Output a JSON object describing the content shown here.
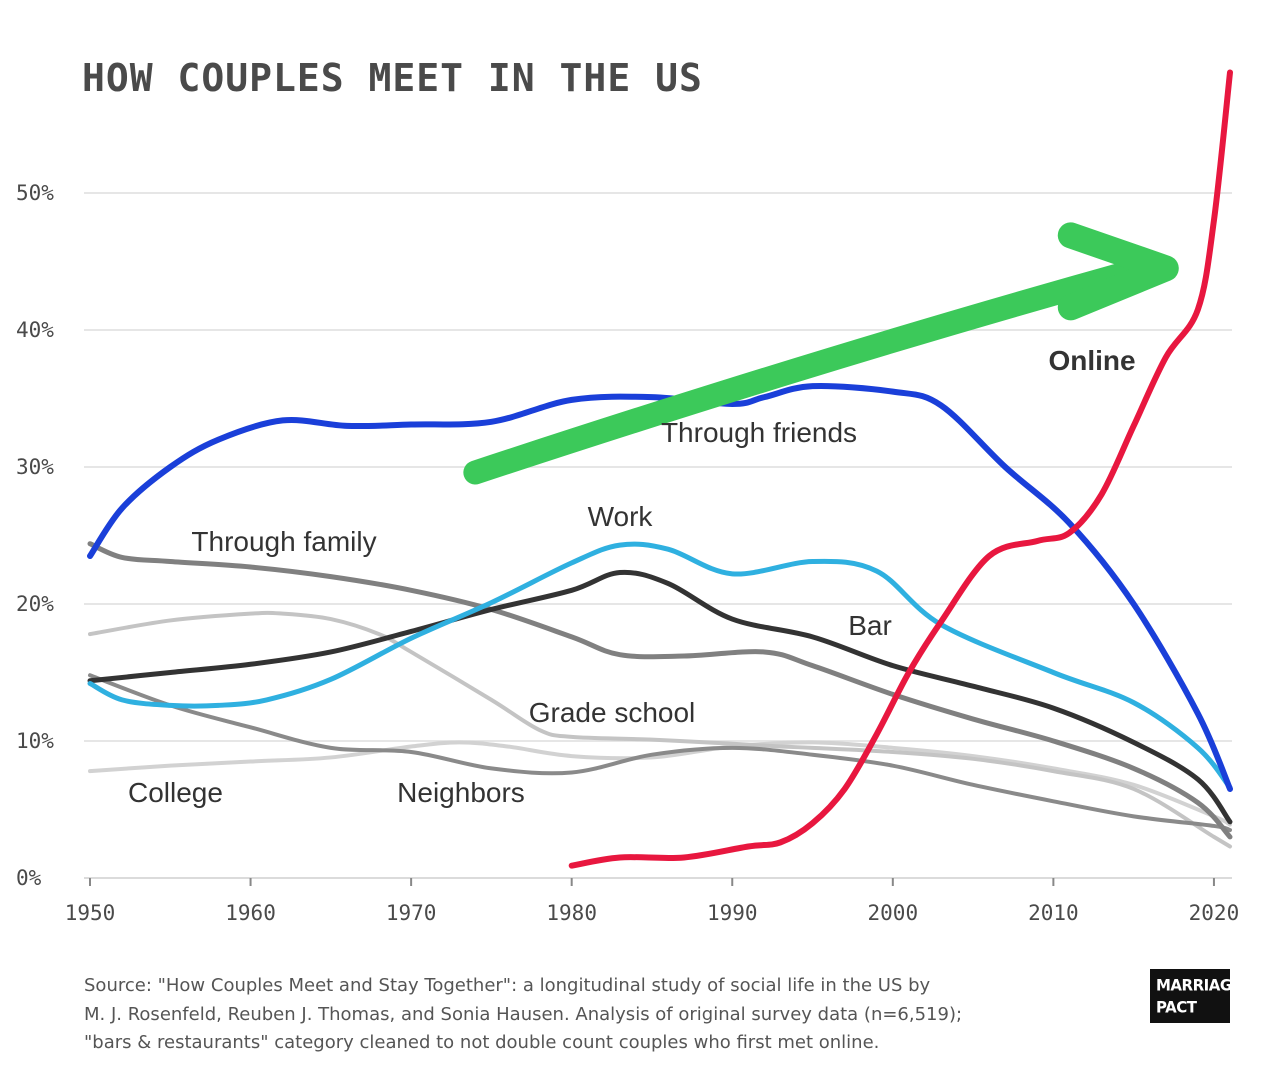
{
  "title": "HOW COUPLES MEET IN THE US",
  "source_lines": [
    "Source: \"How Couples Meet and Stay Together\": a longitudinal study of social life in the US by",
    "M. J. Rosenfeld, Reuben J. Thomas, and Sonia Hausen. Analysis of original survey data (n=6,519);",
    "\"bars & restaurants\" category cleaned to not double count couples who first met online."
  ],
  "logo": {
    "line1": "MARRIAGE",
    "line2": "PACT"
  },
  "colors": {
    "online": "#e8173f",
    "friends": "#1a3fd9",
    "work": "#2fb0e0",
    "bar": "#333333",
    "family": "#808080",
    "neighbors": "#8a8a8a",
    "gradeschool": "#c4c4c4",
    "college": "#d2d2d2",
    "arrow": "#3cc95a",
    "grid": "#dddddd"
  },
  "chart_data": {
    "type": "line",
    "title": "HOW COUPLES MEET IN THE US",
    "xlabel": "",
    "ylabel": "",
    "xlim": [
      1950,
      2021
    ],
    "ylim": [
      0,
      55
    ],
    "grid": true,
    "x_ticks": [
      1950,
      1960,
      1970,
      1980,
      1990,
      2000,
      2010,
      2020
    ],
    "x_tick_labels": [
      "1950",
      "1960",
      "1970",
      "1980",
      "1990",
      "2000",
      "2010",
      "2020"
    ],
    "y_ticks": [
      0,
      10,
      20,
      30,
      40,
      50
    ],
    "y_tick_labels": [
      "0%",
      "10%",
      "20%",
      "30%",
      "40%",
      "50%"
    ],
    "series": [
      {
        "name": "College",
        "key": "college",
        "width": 4,
        "label": "College",
        "x": [
          1950,
          1955,
          1960,
          1965,
          1970,
          1973,
          1976,
          1980,
          1985,
          1990,
          1995,
          2000,
          2005,
          2010,
          2015,
          2020,
          2021
        ],
        "values": [
          7.8,
          8.2,
          8.5,
          8.8,
          9.6,
          9.9,
          9.6,
          8.9,
          8.8,
          9.6,
          9.9,
          9.5,
          8.9,
          8.0,
          6.8,
          4.5,
          3.9
        ]
      },
      {
        "name": "Grade school",
        "key": "gradeschool",
        "width": 4,
        "label": "Grade school",
        "x": [
          1950,
          1955,
          1960,
          1962,
          1965,
          1968,
          1970,
          1975,
          1978,
          1980,
          1985,
          1990,
          1993,
          1995,
          2000,
          2005,
          2010,
          2015,
          2020,
          2021
        ],
        "values": [
          17.8,
          18.8,
          19.3,
          19.3,
          18.9,
          17.8,
          16.5,
          13.0,
          10.8,
          10.3,
          10.1,
          9.8,
          9.6,
          9.5,
          9.2,
          8.7,
          7.8,
          6.5,
          3.0,
          2.3
        ]
      },
      {
        "name": "Neighbors",
        "key": "neighbors",
        "width": 4,
        "label": "Neighbors",
        "x": [
          1950,
          1955,
          1960,
          1965,
          1970,
          1975,
          1980,
          1985,
          1990,
          1995,
          2000,
          2005,
          2010,
          2015,
          2020,
          2021
        ],
        "values": [
          14.8,
          12.6,
          11.0,
          9.5,
          9.2,
          8.0,
          7.7,
          9.0,
          9.5,
          9.0,
          8.2,
          6.8,
          5.6,
          4.5,
          3.8,
          3.5
        ]
      },
      {
        "name": "Through family",
        "key": "family",
        "width": 5,
        "label": "Through family",
        "x": [
          1950,
          1952,
          1955,
          1960,
          1965,
          1970,
          1975,
          1980,
          1983,
          1987,
          1992,
          1995,
          2000,
          2005,
          2010,
          2015,
          2019,
          2021
        ],
        "values": [
          24.4,
          23.4,
          23.1,
          22.7,
          22.0,
          21.0,
          19.6,
          17.6,
          16.3,
          16.2,
          16.5,
          15.5,
          13.4,
          11.6,
          10.0,
          8.0,
          5.5,
          3.0
        ]
      },
      {
        "name": "Bar",
        "key": "bar",
        "width": 5,
        "label": "Bar",
        "x": [
          1950,
          1955,
          1960,
          1965,
          1970,
          1975,
          1980,
          1983,
          1986,
          1990,
          1995,
          2000,
          2005,
          2010,
          2015,
          2019,
          2021
        ],
        "values": [
          14.4,
          15.0,
          15.6,
          16.5,
          18.0,
          19.6,
          21.0,
          22.3,
          21.5,
          18.9,
          17.6,
          15.5,
          14.0,
          12.4,
          9.9,
          7.2,
          4.1
        ]
      },
      {
        "name": "Work",
        "key": "work",
        "width": 5,
        "label": "Work",
        "x": [
          1950,
          1952,
          1955,
          1958,
          1961,
          1965,
          1970,
          1975,
          1980,
          1983,
          1986,
          1990,
          1995,
          1999,
          2003,
          2010,
          2015,
          2019,
          2021
        ],
        "values": [
          14.2,
          13.0,
          12.6,
          12.6,
          13.0,
          14.5,
          17.5,
          20.1,
          23.0,
          24.3,
          24.0,
          22.2,
          23.1,
          22.4,
          18.5,
          15.0,
          12.8,
          9.5,
          6.6
        ]
      },
      {
        "name": "Through friends",
        "key": "friends",
        "width": 6,
        "label": "Through friends",
        "x": [
          1950,
          1952,
          1955,
          1958,
          1962,
          1966,
          1970,
          1975,
          1980,
          1985,
          1990,
          1992,
          1995,
          2000,
          2003,
          2007,
          2011,
          2015,
          2019,
          2021
        ],
        "values": [
          23.5,
          27.0,
          30.0,
          32.0,
          33.4,
          33.0,
          33.1,
          33.3,
          34.9,
          35.1,
          34.6,
          35.1,
          35.9,
          35.5,
          34.5,
          30.0,
          25.9,
          20.0,
          12.0,
          6.5
        ]
      },
      {
        "name": "Online",
        "key": "online",
        "width": 6,
        "label": "Online",
        "x": [
          1980,
          1983,
          1987,
          1991,
          1993,
          1995,
          1997,
          1999,
          2001,
          2003,
          2006,
          2009,
          2011,
          2013,
          2015,
          2017,
          2019,
          2020,
          2021
        ],
        "values": [
          0.9,
          1.5,
          1.5,
          2.3,
          2.6,
          4.0,
          6.5,
          10.5,
          15.0,
          18.7,
          23.5,
          24.6,
          25.2,
          28.0,
          33.0,
          38.0,
          41.5,
          48.0,
          58.8
        ]
      }
    ],
    "annotation": {
      "type": "arrow",
      "from": [
        1974,
        29.6
      ],
      "to": [
        2017,
        44.5
      ],
      "color": "green"
    }
  }
}
